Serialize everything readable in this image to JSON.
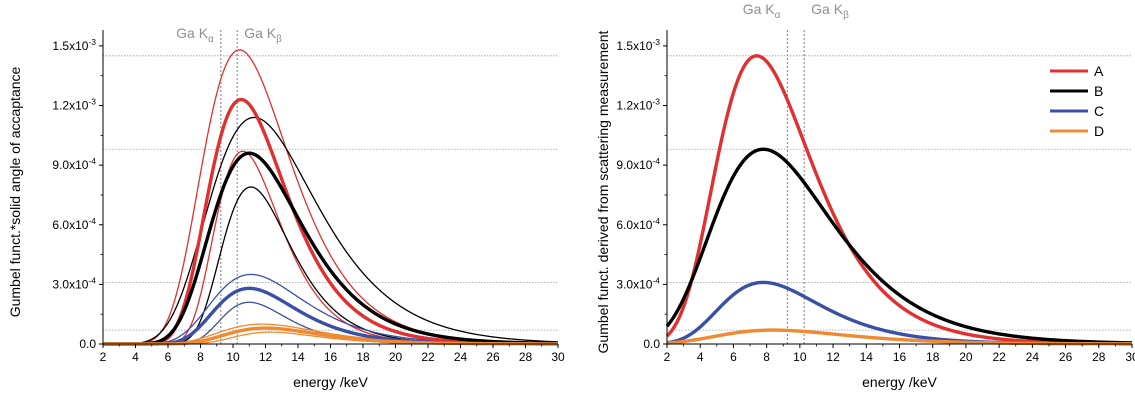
{
  "chart_data": [
    {
      "type": "line",
      "title": "",
      "xlabel": "energy /keV",
      "ylabel": "Gumbel funct.*solid angle of accaptance",
      "xlim": [
        2,
        30
      ],
      "ylim": [
        0,
        0.00158
      ],
      "x_ticks": [
        2,
        4,
        6,
        8,
        10,
        12,
        14,
        16,
        18,
        20,
        22,
        24,
        26,
        28,
        30
      ],
      "x_tick_labels": [
        "2",
        "4",
        "6",
        "8",
        "10",
        "12",
        "14",
        "16",
        "18",
        "20",
        "22",
        "24",
        "26",
        "28",
        "30"
      ],
      "y_ticks": [
        0,
        0.0003,
        0.0006,
        0.0009,
        0.0012,
        0.0015
      ],
      "y_tick_labels": [
        {
          "mant": "0.0",
          "exp": ""
        },
        {
          "mant": "3.0x10",
          "exp": "-4"
        },
        {
          "mant": "6.0x10",
          "exp": "-4"
        },
        {
          "mant": "9.0x10",
          "exp": "-4"
        },
        {
          "mant": "1.2x10",
          "exp": "-3"
        },
        {
          "mant": "1.5x10",
          "exp": "-3"
        }
      ],
      "grid": false,
      "reference_lines_y": [
        0.00145,
        0.00098,
        0.00031,
        7e-05
      ],
      "annotations": [
        {
          "base": "Ga K",
          "sub": "α",
          "x_marker": 9.25
        },
        {
          "base": "Ga K",
          "sub": "β",
          "x_marker": 10.26
        }
      ],
      "series": [
        {
          "group": "A",
          "color": "#e03030",
          "width": "thick",
          "peak_x": 10.5,
          "peak_y": 0.00123,
          "beta": 2.4
        },
        {
          "group": "A",
          "color": "#e03030",
          "width": "thin",
          "peak_x": 10.4,
          "peak_y": 0.00148,
          "beta": 2.7
        },
        {
          "group": "A",
          "color": "#e03030",
          "width": "thin",
          "peak_x": 10.6,
          "peak_y": 0.00097,
          "beta": 2.0
        },
        {
          "group": "B",
          "color": "#000000",
          "width": "thick",
          "peak_x": 11.0,
          "peak_y": 0.00096,
          "beta": 2.8
        },
        {
          "group": "B",
          "color": "#000000",
          "width": "thin",
          "peak_x": 11.3,
          "peak_y": 0.00114,
          "beta": 3.3
        },
        {
          "group": "B",
          "color": "#000000",
          "width": "thin",
          "peak_x": 11.1,
          "peak_y": 0.00079,
          "beta": 2.1
        },
        {
          "group": "C",
          "color": "#3a4fa8",
          "width": "thick",
          "peak_x": 11.0,
          "peak_y": 0.00028,
          "beta": 2.5
        },
        {
          "group": "C",
          "color": "#3a4fa8",
          "width": "thin",
          "peak_x": 11.1,
          "peak_y": 0.00035,
          "beta": 2.8
        },
        {
          "group": "C",
          "color": "#3a4fa8",
          "width": "thin",
          "peak_x": 11.0,
          "peak_y": 0.00021,
          "beta": 2.0
        },
        {
          "group": "D",
          "color": "#f08a30",
          "width": "thick",
          "peak_x": 12.0,
          "peak_y": 8e-05,
          "beta": 2.8
        },
        {
          "group": "D",
          "color": "#f08a30",
          "width": "thin",
          "peak_x": 11.8,
          "peak_y": 0.0001,
          "beta": 3.0
        },
        {
          "group": "D",
          "color": "#f08a30",
          "width": "thin",
          "peak_x": 12.3,
          "peak_y": 6e-05,
          "beta": 2.5
        }
      ]
    },
    {
      "type": "line",
      "title": "",
      "xlabel": "energy /keV",
      "ylabel": "Gumbel funct. derived from scattering measurement",
      "xlim": [
        2,
        30
      ],
      "ylim": [
        0,
        0.00158
      ],
      "x_ticks": [
        2,
        4,
        6,
        8,
        10,
        12,
        14,
        16,
        18,
        20,
        22,
        24,
        26,
        28,
        30
      ],
      "x_tick_labels": [
        "2",
        "4",
        "6",
        "8",
        "10",
        "12",
        "14",
        "16",
        "18",
        "20",
        "22",
        "24",
        "26",
        "28",
        "30"
      ],
      "y_ticks": [
        0,
        0.0003,
        0.0006,
        0.0009,
        0.0012,
        0.0015
      ],
      "y_tick_labels": [
        {
          "mant": "0.0",
          "exp": ""
        },
        {
          "mant": "3.0x10",
          "exp": "-4"
        },
        {
          "mant": "6.0x10",
          "exp": "-4"
        },
        {
          "mant": "9.0x10",
          "exp": "-4"
        },
        {
          "mant": "1.2x10",
          "exp": "-3"
        },
        {
          "mant": "1.5x10",
          "exp": "-3"
        }
      ],
      "grid": false,
      "reference_lines_y": [
        0.00145,
        0.00098,
        0.00031,
        7e-05
      ],
      "annotations": [
        {
          "base": "Ga K",
          "sub": "α",
          "x_marker": 9.25
        },
        {
          "base": "Ga K",
          "sub": "β",
          "x_marker": 10.26
        }
      ],
      "legend": {
        "placement": "top-right",
        "entries": [
          {
            "name": "A",
            "color": "#e03030"
          },
          {
            "name": "B",
            "color": "#000000"
          },
          {
            "name": "C",
            "color": "#3a4fa8"
          },
          {
            "name": "D",
            "color": "#f08a30"
          }
        ]
      },
      "series": [
        {
          "name": "A",
          "color": "#e03030",
          "width": "thick",
          "peak_x": 7.4,
          "peak_y": 0.00145,
          "beta": 2.9
        },
        {
          "name": "B",
          "color": "#000000",
          "width": "thick",
          "peak_x": 7.8,
          "peak_y": 0.00098,
          "beta": 3.6
        },
        {
          "name": "C",
          "color": "#3a4fa8",
          "width": "thick",
          "peak_x": 7.8,
          "peak_y": 0.00031,
          "beta": 3.0
        },
        {
          "name": "D",
          "color": "#f08a30",
          "width": "thick",
          "peak_x": 8.4,
          "peak_y": 7e-05,
          "beta": 3.8
        }
      ]
    }
  ]
}
